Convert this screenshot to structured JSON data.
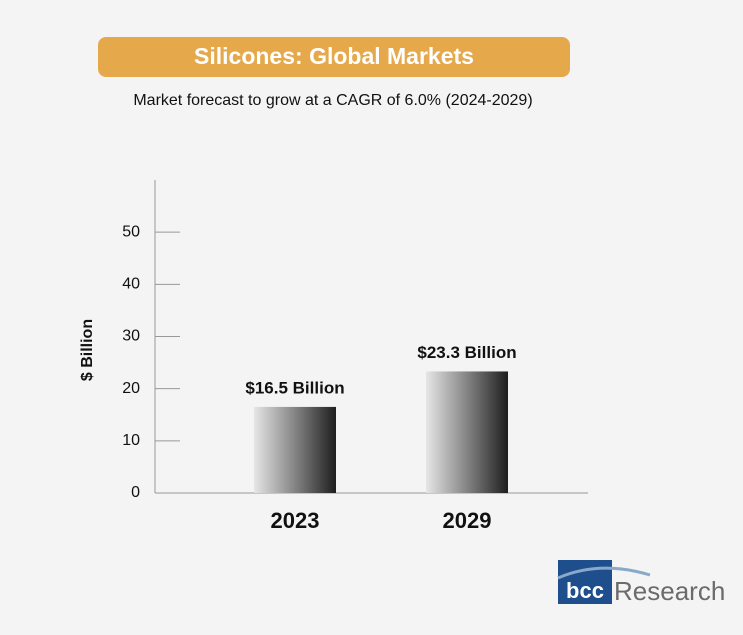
{
  "chart_data": {
    "type": "bar",
    "title": "Silicones: Global Markets",
    "subtitle": "Market forecast to grow at a CAGR of 6.0% (2024-2029)",
    "y_label": "$ Billion",
    "categories": [
      "2023",
      "2029"
    ],
    "values": [
      16.5,
      23.3
    ],
    "value_labels": [
      "$16.5 Billion",
      "$23.3 Billion"
    ],
    "ylim": [
      0,
      60
    ],
    "yticks": [
      0,
      10,
      20,
      30,
      40,
      50
    ],
    "title_color": "#e5a94b"
  },
  "logo": {
    "mark": "bcc",
    "text": "Research"
  }
}
